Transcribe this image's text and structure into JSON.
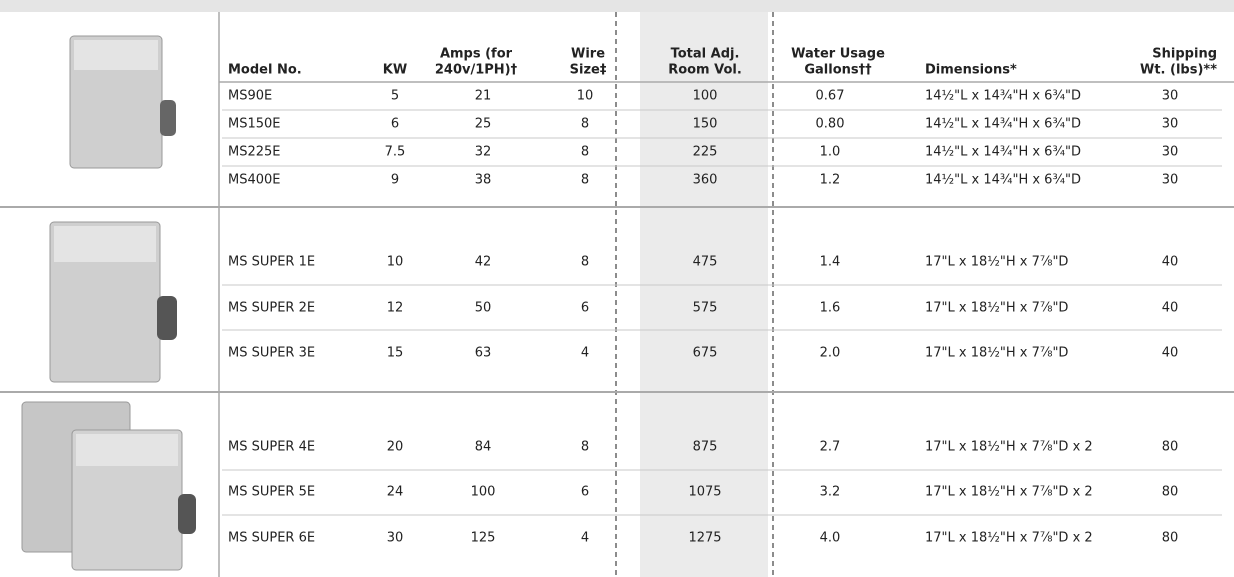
{
  "table": {
    "columns": [
      [
        "Model No."
      ],
      [
        "KW"
      ],
      [
        "Amps (for",
        "240v/1PH)†"
      ],
      [
        "Wire",
        "Size‡"
      ],
      [
        "Total Adj.",
        "Room Vol."
      ],
      [
        "Water Usage",
        "Gallons††"
      ],
      [
        "Dimensions*"
      ],
      [
        "Shipping",
        "Wt. (lbs)**"
      ]
    ],
    "groups": [
      {
        "rows": [
          [
            "MS90E",
            "5",
            "21",
            "10",
            "100",
            "0.67",
            "14½\"L x 14¾\"H x 6¾\"D",
            "30"
          ],
          [
            "MS150E",
            "6",
            "25",
            "8",
            "150",
            "0.80",
            "14½\"L x 14¾\"H x 6¾\"D",
            "30"
          ],
          [
            "MS225E",
            "7.5",
            "32",
            "8",
            "225",
            "1.0",
            "14½\"L x 14¾\"H x 6¾\"D",
            "30"
          ],
          [
            "MS400E",
            "9",
            "38",
            "8",
            "360",
            "1.2",
            "14½\"L x 14¾\"H x 6¾\"D",
            "30"
          ]
        ]
      },
      {
        "rows": [
          [
            "MS SUPER 1E",
            "10",
            "42",
            "8",
            "475",
            "1.4",
            "17\"L x 18½\"H x 7⅞\"D",
            "40"
          ],
          [
            "MS SUPER 2E",
            "12",
            "50",
            "6",
            "575",
            "1.6",
            "17\"L x 18½\"H x 7⅞\"D",
            "40"
          ],
          [
            "MS SUPER 3E",
            "15",
            "63",
            "4",
            "675",
            "2.0",
            "17\"L x 18½\"H x 7⅞\"D",
            "40"
          ]
        ]
      },
      {
        "rows": [
          [
            "MS SUPER 4E",
            "20",
            "84",
            "8",
            "875",
            "2.7",
            "17\"L x 18½\"H x 7⅞\"D x 2",
            "80"
          ],
          [
            "MS SUPER 5E",
            "24",
            "100",
            "6",
            "1075",
            "3.2",
            "17\"L x 18½\"H x 7⅞\"D x 2",
            "80"
          ],
          [
            "MS SUPER 6E",
            "30",
            "125",
            "4",
            "1275",
            "4.0",
            "17\"L x 18½\"H x 7⅞\"D x 2",
            "80"
          ]
        ]
      }
    ]
  }
}
